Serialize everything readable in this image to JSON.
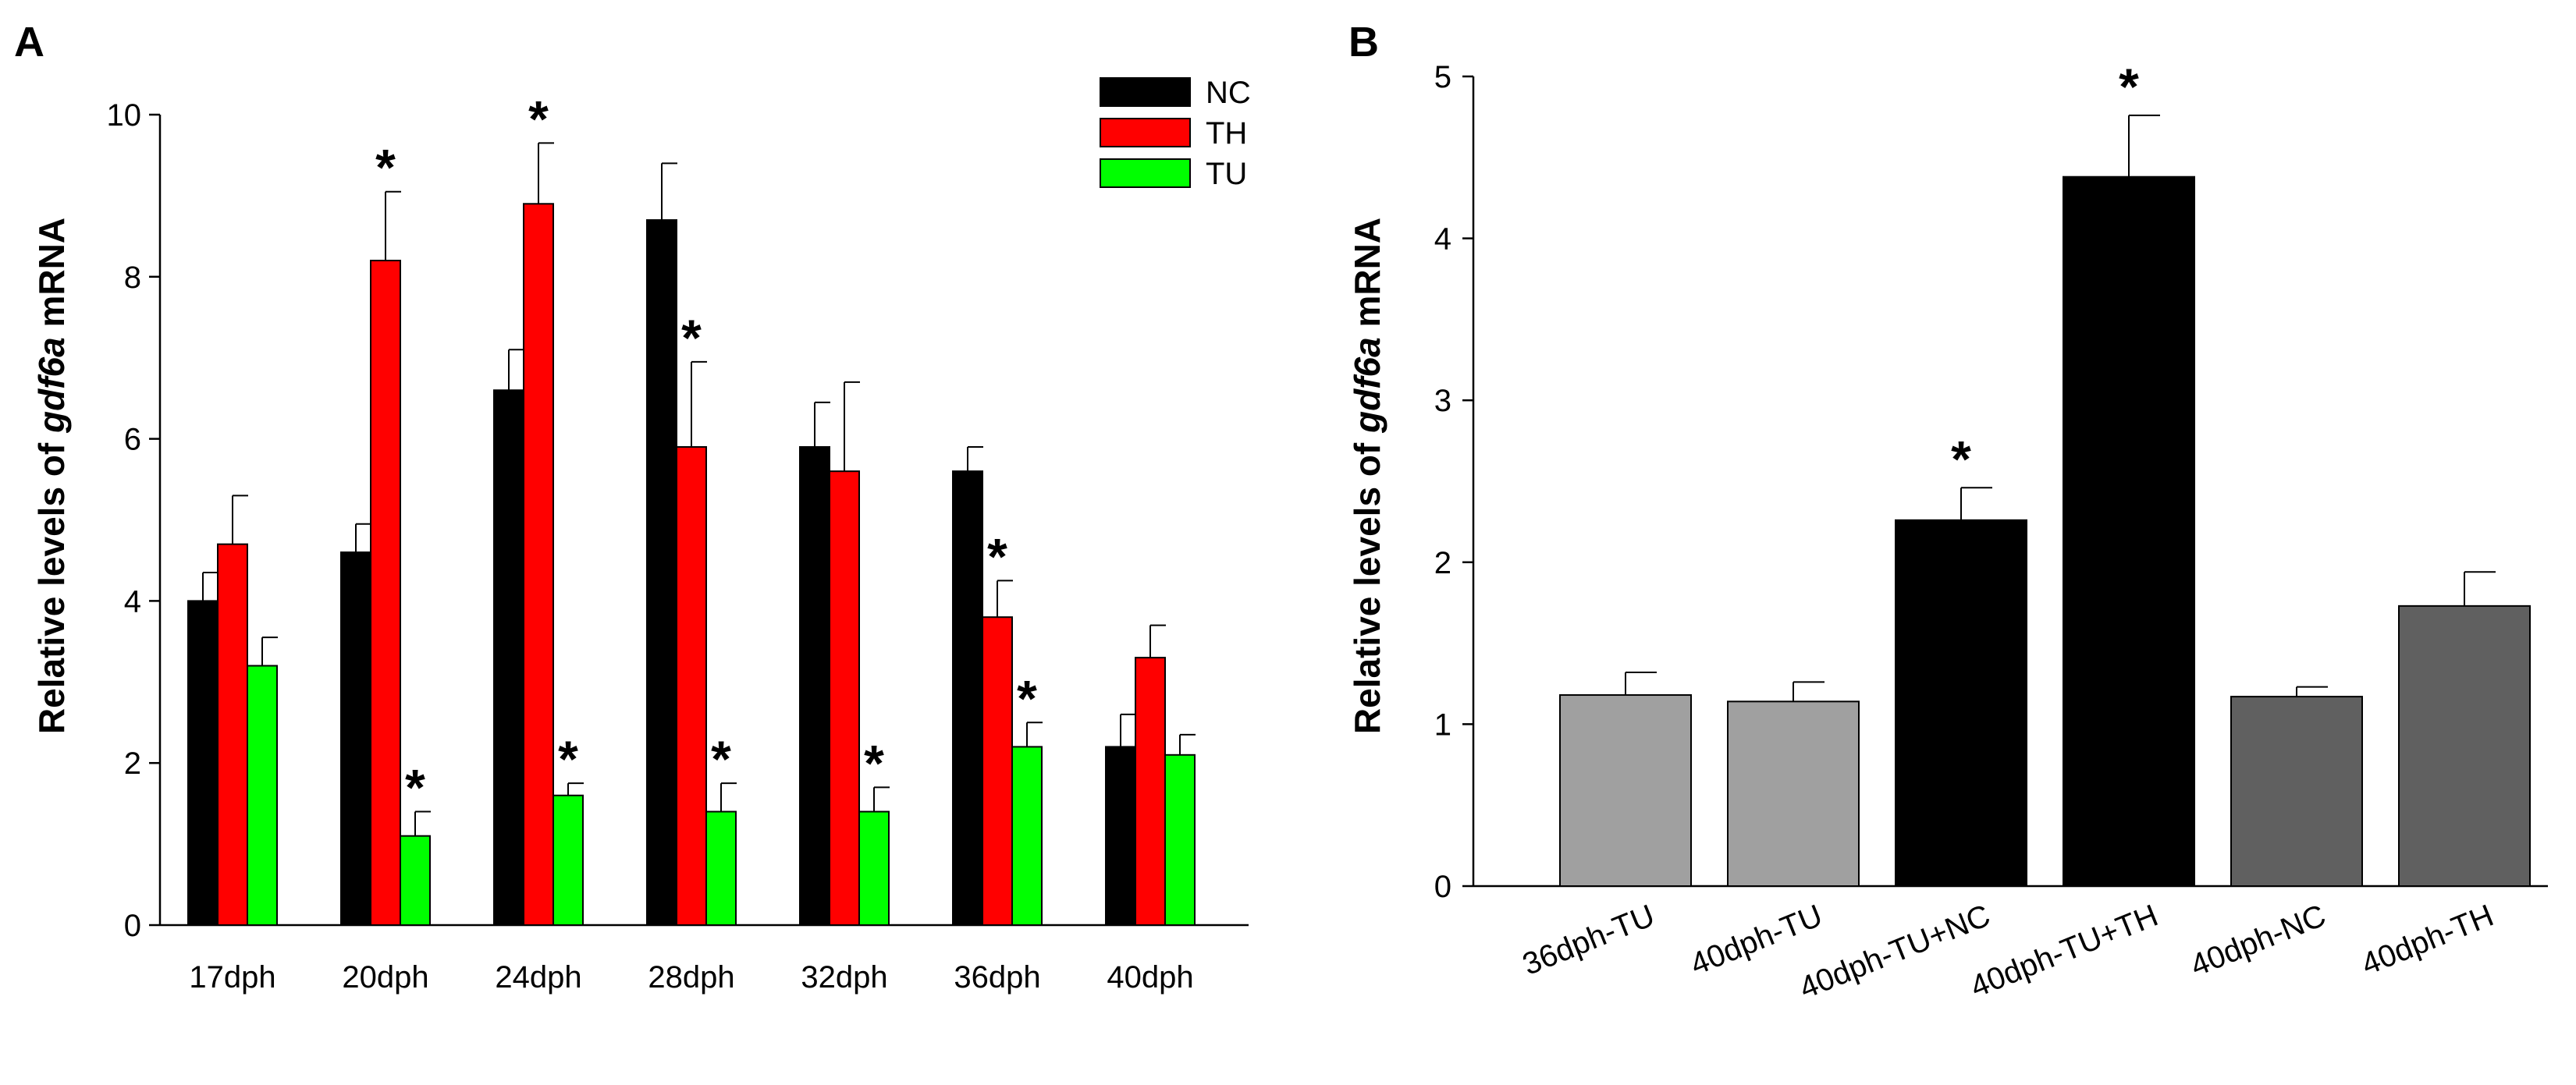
{
  "chart_data": [
    {
      "panel": "A",
      "type": "bar",
      "title": "",
      "xlabel": "",
      "ylabel_prefix": "Relative levels of ",
      "ylabel_italic": "gdf6a",
      "ylabel_suffix": " mRNA",
      "ylim": [
        0,
        10
      ],
      "yticks": [
        0,
        2,
        4,
        6,
        8,
        10
      ],
      "legend_position": "top-right",
      "categories": [
        "17dph",
        "20dph",
        "24dph",
        "28dph",
        "32dph",
        "36dph",
        "40dph"
      ],
      "series": [
        {
          "name": "NC",
          "color": "#000000",
          "values": [
            4.0,
            4.6,
            6.6,
            8.7,
            5.9,
            5.6,
            2.2
          ],
          "errors": [
            0.35,
            0.35,
            0.5,
            0.7,
            0.55,
            0.3,
            0.4
          ],
          "significant": [
            false,
            false,
            false,
            false,
            false,
            false,
            false
          ]
        },
        {
          "name": "TH",
          "color": "#ff0000",
          "values": [
            4.7,
            8.2,
            8.9,
            5.9,
            5.6,
            3.8,
            3.3
          ],
          "errors": [
            0.6,
            0.85,
            0.75,
            1.05,
            1.1,
            0.45,
            0.4
          ],
          "significant": [
            false,
            true,
            true,
            true,
            false,
            true,
            false
          ]
        },
        {
          "name": "TU",
          "color": "#00ff00",
          "values": [
            3.2,
            1.1,
            1.6,
            1.4,
            1.4,
            2.2,
            2.1
          ],
          "errors": [
            0.35,
            0.3,
            0.15,
            0.35,
            0.3,
            0.3,
            0.25
          ],
          "significant": [
            false,
            true,
            true,
            true,
            true,
            true,
            false
          ]
        }
      ],
      "significance_marker": "*"
    },
    {
      "panel": "B",
      "type": "bar",
      "title": "",
      "xlabel": "",
      "ylabel_prefix": "Relative levels of ",
      "ylabel_italic": "gdf6a",
      "ylabel_suffix": " mRNA",
      "ylim": [
        0,
        5
      ],
      "yticks": [
        0,
        1,
        2,
        3,
        4,
        5
      ],
      "categories": [
        "36dph-TU",
        "40dph-TU",
        "40dph-TU+NC",
        "40dph-TU+TH",
        "40dph-NC",
        "40dph-TH"
      ],
      "values": [
        1.18,
        1.14,
        2.26,
        4.38,
        1.17,
        1.73
      ],
      "errors": [
        0.14,
        0.12,
        0.2,
        0.38,
        0.06,
        0.21
      ],
      "colors": [
        "#a0a0a0",
        "#a0a0a0",
        "#000000",
        "#000000",
        "#606060",
        "#606060"
      ],
      "significant": [
        false,
        false,
        true,
        true,
        false,
        false
      ],
      "significance_marker": "*"
    }
  ]
}
